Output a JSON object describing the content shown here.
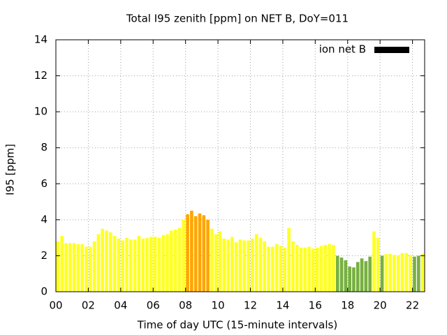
{
  "chart_data": {
    "type": "bar",
    "title": "Total I95 zenith [ppm] on NET B, DoY=011",
    "x_label": "Time of day UTC (15-minute intervals)",
    "y_label": "I95 [ppm]",
    "x": [
      0.125,
      0.375,
      0.625,
      0.875,
      1.125,
      1.375,
      1.625,
      1.875,
      2.125,
      2.375,
      2.625,
      2.875,
      3.125,
      3.375,
      3.625,
      3.875,
      4.125,
      4.375,
      4.625,
      4.875,
      5.125,
      5.375,
      5.625,
      5.875,
      6.125,
      6.375,
      6.625,
      6.875,
      7.125,
      7.375,
      7.625,
      7.875,
      8.125,
      8.375,
      8.625,
      8.875,
      9.125,
      9.375,
      9.625,
      9.875,
      10.125,
      10.375,
      10.625,
      10.875,
      11.125,
      11.375,
      11.625,
      11.875,
      12.125,
      12.375,
      12.625,
      12.875,
      13.125,
      13.375,
      13.625,
      13.875,
      14.125,
      14.375,
      14.625,
      14.875,
      15.125,
      15.375,
      15.625,
      15.875,
      16.125,
      16.375,
      16.625,
      16.875,
      17.125,
      17.375,
      17.625,
      17.875,
      18.125,
      18.375,
      18.625,
      18.875,
      19.125,
      19.375,
      19.625,
      19.875,
      20.125,
      20.375,
      20.625,
      20.875,
      21.125,
      21.375,
      21.625,
      21.875,
      22.125,
      22.375,
      22.625
    ],
    "series": [
      {
        "name": "ion net B",
        "color": "#000000",
        "values": [
          2.8,
          3.1,
          2.7,
          2.7,
          2.7,
          2.65,
          2.65,
          2.5,
          2.5,
          2.8,
          3.2,
          3.5,
          3.4,
          3.3,
          3.1,
          2.95,
          2.85,
          3.0,
          2.9,
          2.9,
          3.1,
          2.95,
          3.0,
          3.05,
          3.05,
          3.0,
          3.15,
          3.2,
          3.4,
          3.45,
          3.55,
          4.0,
          4.3,
          4.5,
          4.2,
          4.35,
          4.25,
          4.0,
          3.5,
          3.2,
          3.35,
          2.95,
          2.9,
          3.05,
          2.75,
          2.9,
          2.85,
          2.85,
          2.95,
          3.2,
          3.0,
          2.8,
          2.5,
          2.5,
          2.65,
          2.55,
          2.45,
          3.55,
          2.8,
          2.6,
          2.45,
          2.45,
          2.5,
          2.4,
          2.45,
          2.55,
          2.6,
          2.65,
          2.6,
          2.0,
          1.9,
          1.75,
          1.4,
          1.35,
          1.65,
          1.85,
          1.7,
          1.95,
          3.35,
          3.0,
          2.0,
          2.1,
          2.1,
          2.05,
          2.0,
          2.15,
          2.15,
          2.05,
          1.95,
          2.0,
          2.1
        ],
        "colors": [
          "#ffff26",
          "#ffff26",
          "#ffff26",
          "#ffff26",
          "#ffff26",
          "#ffff26",
          "#ffff26",
          "#ffff26",
          "#ffff26",
          "#ffff26",
          "#ffff26",
          "#ffff26",
          "#ffff26",
          "#ffff26",
          "#ffff26",
          "#ffff26",
          "#ffff26",
          "#ffff26",
          "#ffff26",
          "#ffff26",
          "#ffff26",
          "#ffff26",
          "#ffff26",
          "#ffff26",
          "#ffff26",
          "#ffff26",
          "#ffff26",
          "#ffff26",
          "#ffff26",
          "#ffff26",
          "#ffff26",
          "#ffff26",
          "#ffa500",
          "#ffa500",
          "#ffa500",
          "#ffa500",
          "#ffa500",
          "#ffa500",
          "#ffff26",
          "#ffff26",
          "#ffff26",
          "#ffff26",
          "#ffff26",
          "#ffff26",
          "#ffff26",
          "#ffff26",
          "#ffff26",
          "#ffff26",
          "#ffff26",
          "#ffff26",
          "#ffff26",
          "#ffff26",
          "#ffff26",
          "#ffff26",
          "#ffff26",
          "#ffff26",
          "#ffff26",
          "#ffff26",
          "#ffff26",
          "#ffff26",
          "#ffff26",
          "#ffff26",
          "#ffff26",
          "#ffff26",
          "#ffff26",
          "#ffff26",
          "#ffff26",
          "#ffff26",
          "#ffff26",
          "#77b040",
          "#77b040",
          "#77b040",
          "#77b040",
          "#77b040",
          "#77b040",
          "#77b040",
          "#77b040",
          "#77b040",
          "#ffff26",
          "#ffff26",
          "#77b040",
          "#ffff26",
          "#ffff26",
          "#ffff26",
          "#ffff26",
          "#ffff26",
          "#ffff26",
          "#ffff26",
          "#77b040",
          "#77b040",
          "#ffff26"
        ]
      }
    ],
    "xlim": [
      0,
      22.75
    ],
    "xticks": [
      {
        "value": 0,
        "label": "00"
      },
      {
        "value": 2,
        "label": "02"
      },
      {
        "value": 4,
        "label": "04"
      },
      {
        "value": 6,
        "label": "06"
      },
      {
        "value": 8,
        "label": "08"
      },
      {
        "value": 10,
        "label": "10"
      },
      {
        "value": 12,
        "label": "12"
      },
      {
        "value": 14,
        "label": "14"
      },
      {
        "value": 16,
        "label": "16"
      },
      {
        "value": 18,
        "label": "18"
      },
      {
        "value": 20,
        "label": "20"
      },
      {
        "value": 22,
        "label": "22"
      }
    ],
    "ylim": [
      0,
      14
    ],
    "yticks": [
      0,
      2,
      4,
      6,
      8,
      10,
      12,
      14
    ],
    "grid": true,
    "legend": "top-right"
  }
}
